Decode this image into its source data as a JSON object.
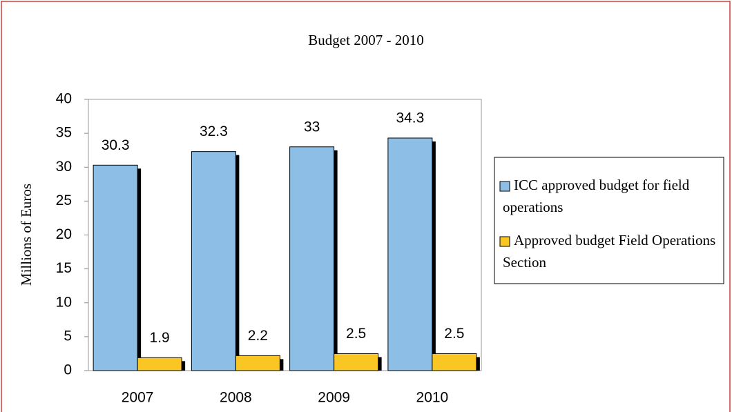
{
  "chart_data": {
    "type": "bar",
    "title": "Budget 2007 - 2010",
    "y_label": "Millions of Euros",
    "categories": [
      "2007",
      "2008",
      "2009",
      "2010"
    ],
    "series": [
      {
        "name": "ICC approved budget for field operations",
        "color": "#8dbfe6",
        "values": [
          30.3,
          32.3,
          33,
          34.3
        ]
      },
      {
        "name": "Approved budget Field Operations Section",
        "color": "#f9c623",
        "values": [
          1.9,
          2.2,
          2.5,
          2.5
        ]
      }
    ],
    "ylim": [
      0,
      40
    ],
    "yticks": [
      0,
      5,
      10,
      15,
      20,
      25,
      30,
      35,
      40
    ],
    "grid": false,
    "legend": "right"
  }
}
